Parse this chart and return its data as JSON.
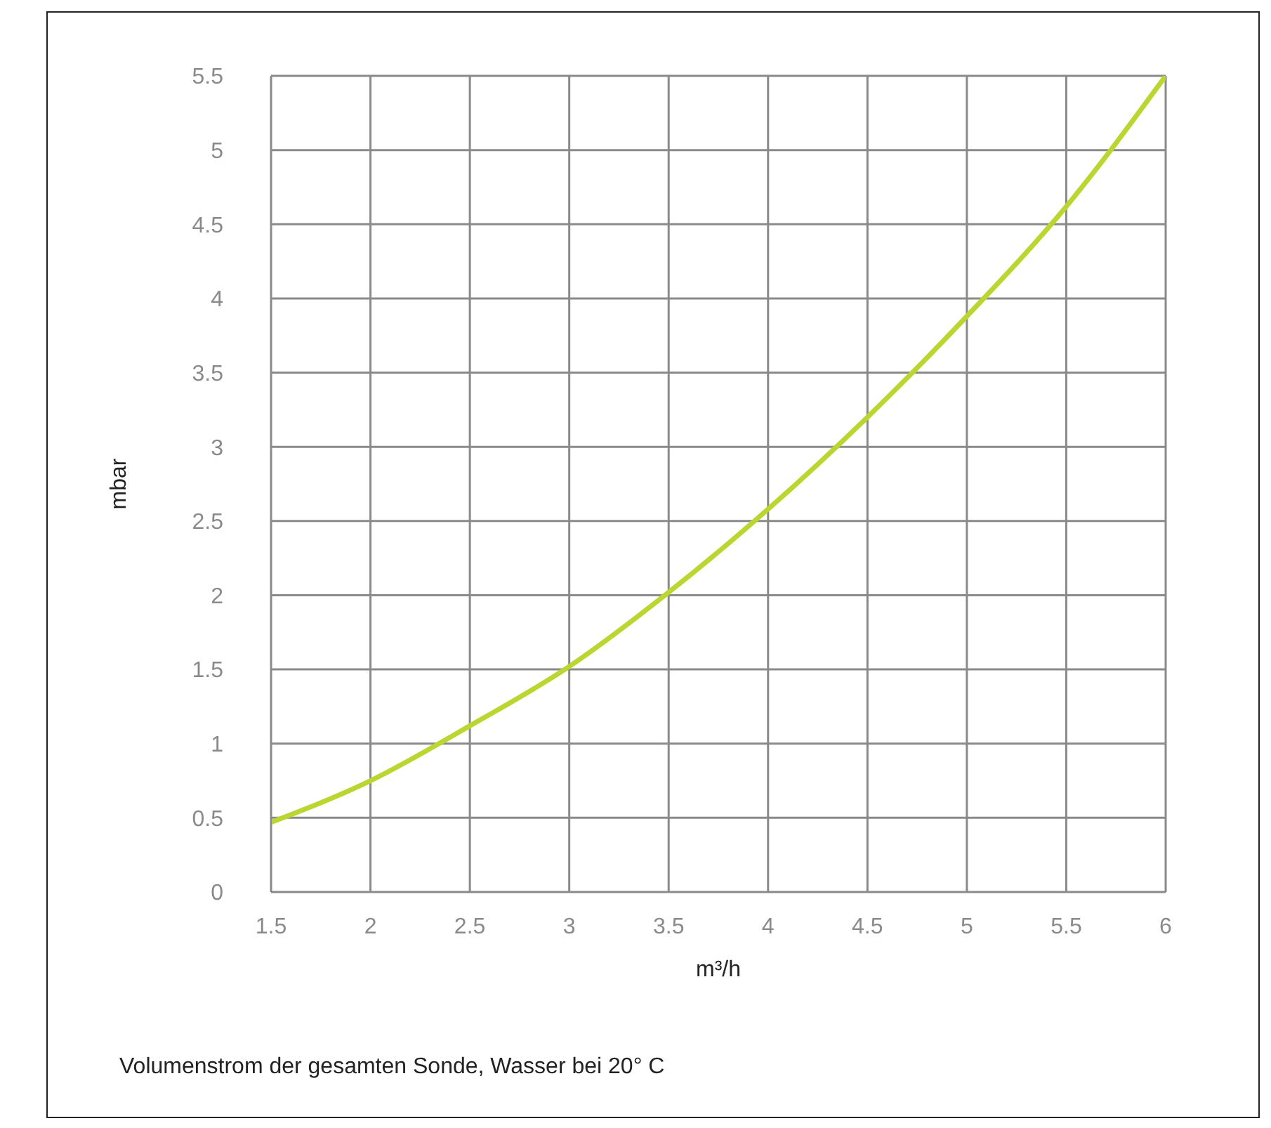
{
  "chart_data": {
    "type": "line",
    "xlabel": "m³/h",
    "ylabel": "mbar",
    "x": [
      1.5,
      2,
      2.5,
      3,
      3.5,
      4,
      4.5,
      5,
      5.5,
      6
    ],
    "series": [
      {
        "color": "#bcd631",
        "values": [
          0.47,
          0.75,
          1.12,
          1.52,
          2.02,
          2.58,
          3.2,
          3.88,
          4.62,
          5.5
        ]
      }
    ],
    "xlim": [
      1.5,
      6
    ],
    "ylim": [
      0,
      5.5
    ],
    "xticks": [
      1.5,
      2,
      2.5,
      3,
      3.5,
      4,
      4.5,
      5,
      5.5,
      6
    ],
    "yticks": [
      0,
      0.5,
      1,
      1.5,
      2,
      2.5,
      3,
      3.5,
      4,
      4.5,
      5,
      5.5
    ],
    "grid": true,
    "annotations": [
      "Volumenstrom der gesamten Sonde, Wasser bei 20° C"
    ]
  }
}
